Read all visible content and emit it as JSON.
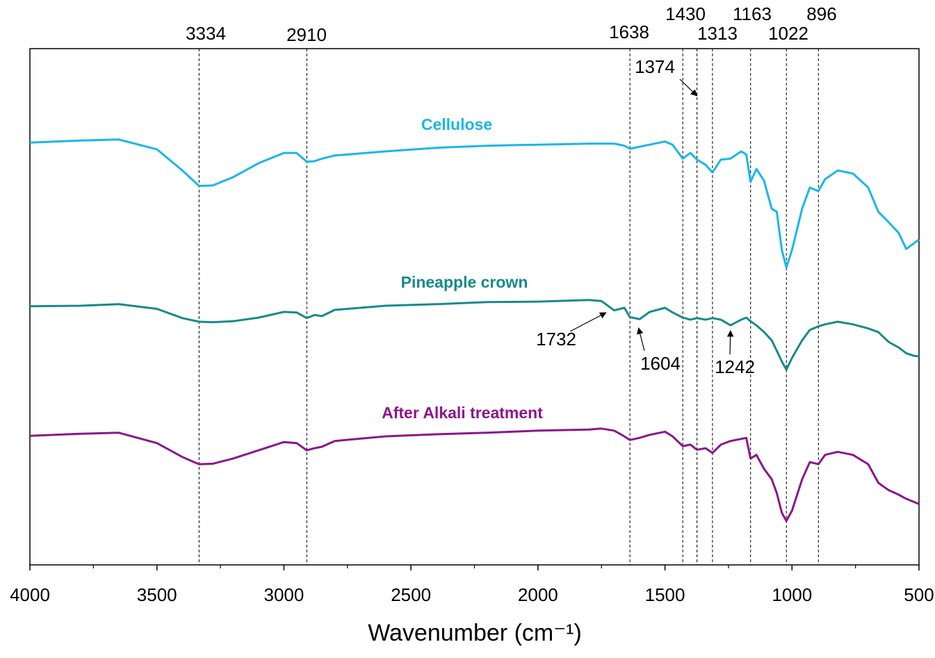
{
  "chart_data": {
    "type": "line",
    "x_label": "Wavenumber (cm⁻¹)",
    "xlim": [
      4000,
      500
    ],
    "xticks": [
      4000,
      3500,
      3000,
      2500,
      2000,
      1500,
      1000,
      500
    ],
    "ylim": [
      0,
      100
    ],
    "x": [
      4000,
      3800,
      3650,
      3500,
      3400,
      3334,
      3280,
      3200,
      3100,
      3000,
      2950,
      2910,
      2880,
      2850,
      2800,
      2600,
      2400,
      2200,
      2000,
      1800,
      1750,
      1700,
      1660,
      1638,
      1600,
      1560,
      1500,
      1470,
      1430,
      1400,
      1374,
      1340,
      1313,
      1280,
      1242,
      1200,
      1180,
      1163,
      1140,
      1110,
      1080,
      1060,
      1040,
      1022,
      1000,
      960,
      930,
      896,
      870,
      820,
      760,
      700,
      660,
      620,
      580,
      550,
      520,
      500
    ],
    "series": [
      {
        "name": "Cellulose",
        "color": "#1ab6ea",
        "values": [
          81.8,
          82.2,
          82.4,
          80.5,
          76.4,
          73.4,
          73.5,
          75.1,
          77.8,
          79.8,
          79.8,
          78.1,
          78.2,
          78.7,
          79.3,
          80.1,
          80.8,
          81.2,
          81.4,
          81.6,
          81.6,
          81.6,
          81.2,
          80.6,
          81.0,
          81.4,
          82.0,
          81.4,
          78.7,
          79.8,
          78.5,
          77.5,
          76.0,
          78.5,
          78.7,
          80.1,
          79.5,
          74.2,
          76.7,
          74.4,
          69.0,
          68.4,
          61.0,
          57.6,
          61.0,
          69.0,
          73.1,
          72.4,
          74.7,
          76.4,
          75.8,
          73.1,
          68.4,
          66.4,
          64.3,
          61.2,
          62.3,
          63.0
        ]
      },
      {
        "name": "Pineapple crown",
        "color": "#178a8a",
        "values": [
          50.1,
          50.2,
          50.5,
          49.6,
          47.8,
          47.1,
          47.0,
          47.2,
          47.9,
          49.0,
          48.9,
          47.8,
          48.4,
          48.2,
          49.4,
          50.2,
          50.5,
          50.9,
          51.0,
          51.3,
          51.1,
          49.3,
          49.8,
          48.0,
          47.6,
          49.0,
          49.8,
          48.9,
          47.9,
          47.5,
          47.8,
          47.5,
          47.8,
          47.5,
          46.4,
          47.5,
          47.9,
          47.2,
          46.4,
          45.1,
          43.5,
          41.5,
          39.4,
          37.8,
          40.1,
          43.5,
          45.5,
          46.2,
          46.6,
          47.1,
          46.6,
          45.8,
          45.1,
          43.2,
          42.1,
          41.0,
          40.5,
          40.4
        ]
      },
      {
        "name": "After Alkali treatment",
        "color": "#8a168a",
        "values": [
          25.0,
          25.4,
          25.6,
          23.6,
          20.9,
          19.5,
          19.6,
          20.6,
          22.2,
          23.8,
          23.6,
          22.2,
          22.6,
          22.9,
          24.0,
          24.9,
          25.3,
          25.6,
          26.0,
          26.2,
          26.4,
          26.0,
          24.9,
          24.2,
          24.6,
          25.2,
          25.8,
          24.9,
          23.0,
          23.3,
          22.3,
          22.6,
          21.7,
          23.3,
          24.0,
          24.4,
          24.6,
          20.6,
          21.3,
          18.6,
          16.6,
          13.9,
          10.1,
          8.5,
          10.5,
          16.6,
          19.9,
          19.5,
          21.3,
          21.9,
          21.3,
          19.5,
          15.9,
          14.5,
          13.6,
          12.8,
          12.2,
          11.8
        ]
      }
    ],
    "peaks": [
      3334,
      2910,
      1638,
      1430,
      1374,
      1313,
      1163,
      1022,
      896
    ],
    "arrow_annotations": [
      1732,
      1604,
      1242
    ]
  }
}
